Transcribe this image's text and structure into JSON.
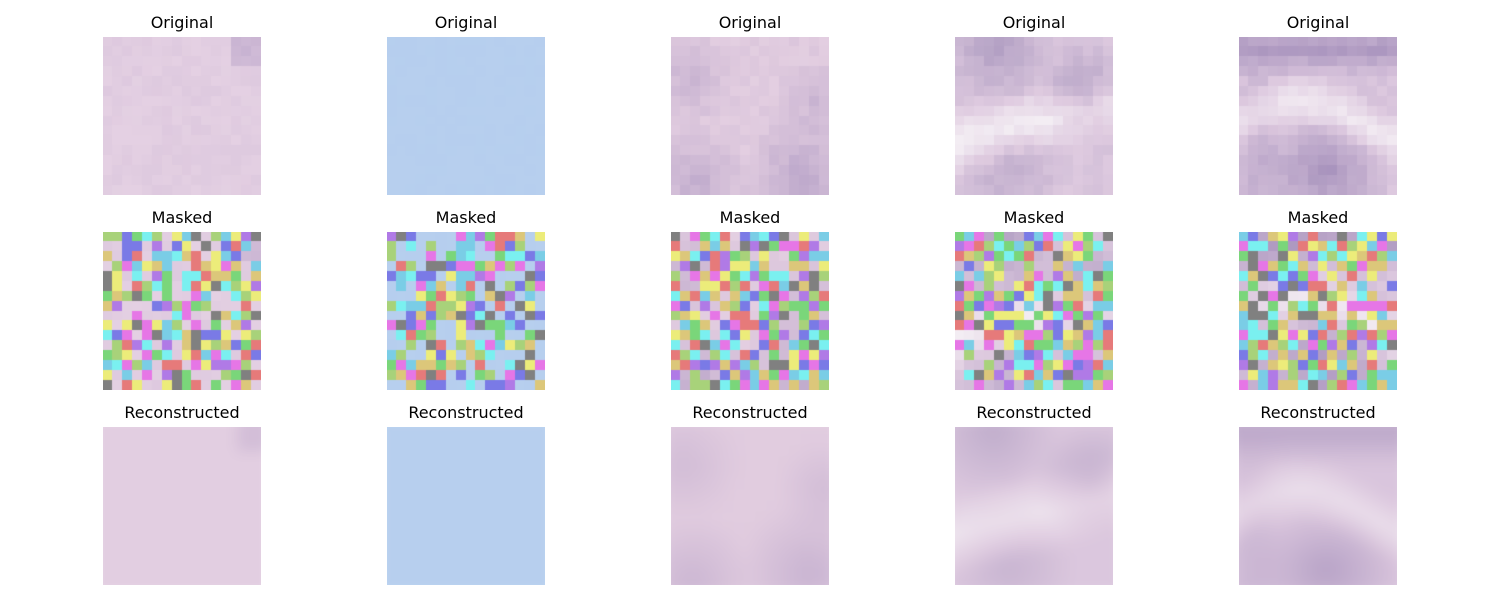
{
  "figure": {
    "row_titles": [
      "Original",
      "Masked",
      "Reconstructed"
    ],
    "columns": [
      {
        "id": "sample-1",
        "kind": "pink-texture",
        "base_color": "#e3cfe2",
        "accent_color": "#b8a2c8",
        "light_color": "#efe2ee"
      },
      {
        "id": "sample-2",
        "kind": "flat-blue",
        "base_color": "#b7cfee",
        "accent_color": "#aec8ea",
        "light_color": "#bcd4f0"
      },
      {
        "id": "sample-3",
        "kind": "pink-texture-corners",
        "base_color": "#e2cde0",
        "accent_color": "#b8a3c8",
        "light_color": "#eadbe9"
      },
      {
        "id": "sample-4",
        "kind": "light-band",
        "base_color": "#dfcbe0",
        "accent_color": "#a896bd",
        "light_color": "#f3edf3"
      },
      {
        "id": "sample-5",
        "kind": "purple-bands",
        "base_color": "#ddc9df",
        "accent_color": "#a893bd",
        "light_color": "#f1e9f1"
      }
    ],
    "mask_palette": [
      "#e676e6",
      "#7a7ae6",
      "#e67a7a",
      "#7acde6",
      "#7ad67a",
      "#dcc77a",
      "#808080",
      "#b07ae6",
      "#a8d27a",
      "#7af0f0",
      "#ecec7a"
    ]
  }
}
